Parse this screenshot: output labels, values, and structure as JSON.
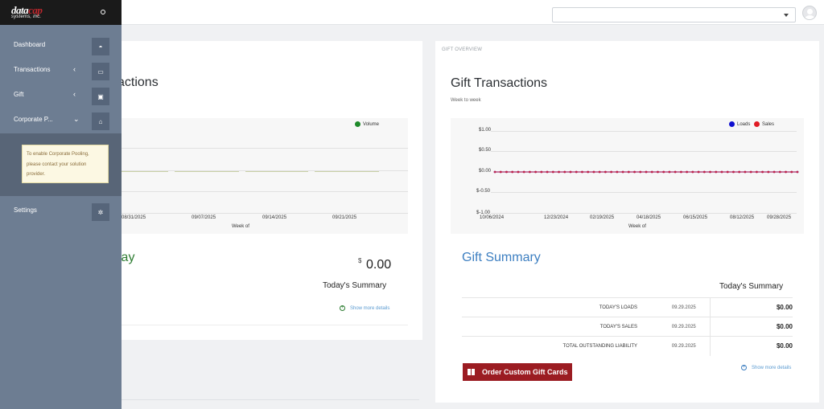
{
  "brand": {
    "logo_line1": "datacap",
    "logo_line2": "systems, inc."
  },
  "sidebar": {
    "items": [
      {
        "label": "Dashboard",
        "icon": "dashboard-gauge-icon"
      },
      {
        "label": "Transactions",
        "chevron": "‹",
        "icon": "credit-card-icon"
      },
      {
        "label": "Gift",
        "chevron": "‹",
        "icon": "gift-icon"
      },
      {
        "label": "Corporate P...",
        "chevron": "⌄",
        "icon": "bank-icon"
      },
      {
        "label": "Settings",
        "icon": "gear-icon"
      }
    ],
    "corporate_note": "To enable Corporate Pooling, please contact your solution provider."
  },
  "left_card": {
    "title_partial": "actions",
    "legend": "Volume",
    "x_ticks": [
      "08/31/2025",
      "09/07/2025",
      "09/14/2025",
      "09/21/2025"
    ],
    "x_label": "Week of",
    "summary_title_partial": "lay",
    "currency": "$",
    "amount": "0.00",
    "todays_summary": "Today's Summary",
    "show_more": "Show more details"
  },
  "right_card": {
    "caption": "GIFT OVERVIEW",
    "title": "Gift Transactions",
    "subtitle": "Week to week",
    "summary_title": "Gift Summary",
    "todays_summary": "Today's Summary",
    "rows": [
      {
        "name": "TODAY'S LOADS",
        "date": "09.29.2025",
        "value": "$0.00"
      },
      {
        "name": "TODAY'S SALES",
        "date": "09.29.2025",
        "value": "$0.00"
      },
      {
        "name": "TOTAL OUTSTANDING LIABILITY",
        "date": "09.29.2025",
        "value": "$0.00"
      }
    ],
    "order_button": "Order Custom Gift Cards",
    "show_more": "Show more details"
  },
  "colors": {
    "sidebar": "#6d7d92",
    "accent_green": "#2e7d32",
    "accent_blue": "#3d7fc1",
    "brand_red": "#9b1c22",
    "loads": "#1010d0",
    "sales": "#e01b24",
    "volume": "#1f8a2a"
  },
  "chart_data": [
    {
      "type": "line",
      "title": "",
      "xlabel": "Week of",
      "categories": [
        "08/31/2025",
        "09/07/2025",
        "09/14/2025",
        "09/21/2025"
      ],
      "series": [
        {
          "name": "Volume",
          "values": [
            0,
            0,
            0,
            0
          ]
        }
      ]
    },
    {
      "type": "line",
      "title": "Gift Transactions",
      "subtitle": "Week to week",
      "xlabel": "Week of",
      "y_ticks": [
        "$1.00",
        "$0.50",
        "$0.00",
        "$-0.50",
        "$-1.00"
      ],
      "ylim": [
        -1,
        1
      ],
      "x_ticks": [
        "10/06/2024",
        "12/23/2024",
        "02/19/2025",
        "04/18/2025",
        "06/15/2025",
        "08/12/2025",
        "09/28/2025"
      ],
      "series": [
        {
          "name": "Loads",
          "values": [
            0,
            0,
            0,
            0,
            0,
            0,
            0,
            0,
            0,
            0,
            0,
            0,
            0,
            0,
            0,
            0,
            0,
            0,
            0,
            0,
            0,
            0,
            0,
            0,
            0,
            0,
            0,
            0,
            0,
            0,
            0,
            0,
            0,
            0,
            0,
            0,
            0,
            0,
            0,
            0,
            0,
            0,
            0,
            0,
            0,
            0,
            0,
            0,
            0,
            0,
            0,
            0,
            0
          ]
        },
        {
          "name": "Sales",
          "values": [
            0,
            0,
            0,
            0,
            0,
            0,
            0,
            0,
            0,
            0,
            0,
            0,
            0,
            0,
            0,
            0,
            0,
            0,
            0,
            0,
            0,
            0,
            0,
            0,
            0,
            0,
            0,
            0,
            0,
            0,
            0,
            0,
            0,
            0,
            0,
            0,
            0,
            0,
            0,
            0,
            0,
            0,
            0,
            0,
            0,
            0,
            0,
            0,
            0,
            0,
            0,
            0,
            0
          ]
        }
      ]
    }
  ]
}
